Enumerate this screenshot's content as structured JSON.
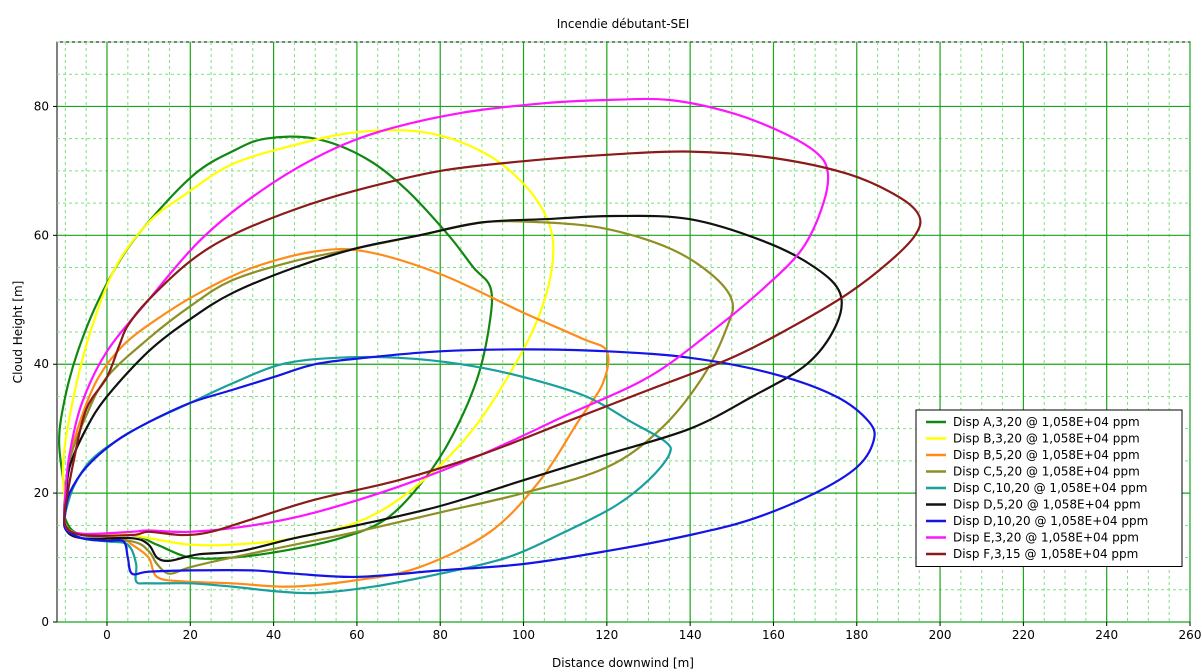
{
  "chart_data": {
    "type": "line",
    "title": "Incendie débutant-SEI",
    "xlabel": "Distance downwind [m]",
    "ylabel": "Cloud Height [m]",
    "xlim": [
      -12,
      260
    ],
    "ylim": [
      0,
      90
    ],
    "x_ticks": [
      0,
      20,
      40,
      60,
      80,
      100,
      120,
      140,
      160,
      180,
      200,
      220,
      240,
      260
    ],
    "y_ticks": [
      0,
      20,
      40,
      60,
      80
    ],
    "x_tick_labels": [
      "0",
      "20",
      "40",
      "60",
      "80",
      "100",
      "120",
      "140",
      "160",
      "180",
      "200",
      "220",
      "240",
      "260"
    ],
    "y_tick_labels": [
      "0",
      "20",
      "40",
      "60",
      "80"
    ],
    "grid": true,
    "minor_grid": true,
    "legend_position": "bottom-right",
    "series": [
      {
        "name": "Disp A,3,20 @ 1,058E+04 ppm",
        "color": "#118811",
        "points": [
          [
            -10,
            20
          ],
          [
            -11.5,
            28
          ],
          [
            -10,
            35
          ],
          [
            -7,
            42
          ],
          [
            -2,
            50
          ],
          [
            5,
            58
          ],
          [
            14,
            65
          ],
          [
            22,
            70
          ],
          [
            30,
            73
          ],
          [
            38,
            75
          ],
          [
            50,
            75
          ],
          [
            62,
            72
          ],
          [
            72,
            67
          ],
          [
            82,
            60
          ],
          [
            88,
            55
          ],
          [
            92,
            52
          ],
          [
            92,
            47
          ],
          [
            89,
            38
          ],
          [
            83,
            29
          ],
          [
            76,
            22
          ],
          [
            67,
            16
          ],
          [
            56,
            13
          ],
          [
            42,
            11
          ],
          [
            30,
            10
          ],
          [
            20,
            10
          ],
          [
            12,
            12
          ],
          [
            6,
            13.5
          ],
          [
            -6,
            13.5
          ],
          [
            -10,
            16
          ],
          [
            -10,
            20
          ]
        ]
      },
      {
        "name": "Disp B,3,20 @ 1,058E+04 ppm",
        "color": "#ffff00",
        "points": [
          [
            -10,
            18
          ],
          [
            -10.5,
            25
          ],
          [
            -8,
            35
          ],
          [
            -4,
            45
          ],
          [
            2,
            55
          ],
          [
            10,
            62
          ],
          [
            18,
            66
          ],
          [
            30,
            71
          ],
          [
            45,
            74
          ],
          [
            60,
            76
          ],
          [
            76,
            76
          ],
          [
            90,
            73
          ],
          [
            100,
            68
          ],
          [
            106,
            62
          ],
          [
            107,
            56
          ],
          [
            104,
            48
          ],
          [
            98,
            40
          ],
          [
            88,
            30
          ],
          [
            76,
            22
          ],
          [
            62,
            16
          ],
          [
            45,
            13
          ],
          [
            30,
            12
          ],
          [
            20,
            12
          ],
          [
            10,
            13
          ],
          [
            5,
            13.6
          ],
          [
            -6,
            13.6
          ],
          [
            -10,
            15
          ],
          [
            -10,
            18
          ]
        ]
      },
      {
        "name": "Disp B,5,20 @ 1,058E+04 ppm",
        "color": "#ff8c1a",
        "points": [
          [
            -10,
            18
          ],
          [
            -9,
            25
          ],
          [
            -6,
            32
          ],
          [
            -2,
            38
          ],
          [
            4,
            43
          ],
          [
            12,
            47
          ],
          [
            22,
            51
          ],
          [
            35,
            55
          ],
          [
            50,
            57.5
          ],
          [
            62,
            57.5
          ],
          [
            80,
            54
          ],
          [
            100,
            48
          ],
          [
            114,
            44
          ],
          [
            120,
            42
          ],
          [
            119,
            37
          ],
          [
            113,
            31
          ],
          [
            104,
            22
          ],
          [
            92,
            14
          ],
          [
            75,
            8.5
          ],
          [
            60,
            6.5
          ],
          [
            44,
            5.5
          ],
          [
            30,
            6
          ],
          [
            18,
            6.3
          ],
          [
            12,
            7
          ],
          [
            10,
            10
          ],
          [
            6,
            12
          ],
          [
            3,
            13
          ],
          [
            -6,
            13
          ],
          [
            -10,
            15
          ],
          [
            -10,
            18
          ]
        ]
      },
      {
        "name": "Disp C,5,20 @ 1,058E+04 ppm",
        "color": "#8f8f26",
        "points": [
          [
            -10,
            18
          ],
          [
            -9,
            25
          ],
          [
            -5,
            32
          ],
          [
            0,
            38
          ],
          [
            10,
            44
          ],
          [
            20,
            49
          ],
          [
            30,
            53
          ],
          [
            45,
            56
          ],
          [
            60,
            58
          ],
          [
            75,
            60
          ],
          [
            90,
            62
          ],
          [
            105,
            62
          ],
          [
            120,
            61
          ],
          [
            135,
            58
          ],
          [
            145,
            54
          ],
          [
            150,
            50
          ],
          [
            149,
            46
          ],
          [
            143,
            38
          ],
          [
            133,
            30
          ],
          [
            120,
            24
          ],
          [
            100,
            20
          ],
          [
            80,
            17
          ],
          [
            60,
            14
          ],
          [
            45,
            12
          ],
          [
            30,
            10
          ],
          [
            20,
            8.5
          ],
          [
            15,
            7.5
          ],
          [
            12,
            9
          ],
          [
            10,
            11
          ],
          [
            6,
            12.5
          ],
          [
            -6,
            13
          ],
          [
            -10,
            15
          ],
          [
            -10,
            18
          ]
        ]
      },
      {
        "name": "Disp C,10,20 @ 1,058E+04 ppm",
        "color": "#1a9e9e",
        "points": [
          [
            -10,
            17
          ],
          [
            -8,
            21
          ],
          [
            -4,
            25
          ],
          [
            2,
            28
          ],
          [
            10,
            31
          ],
          [
            20,
            34
          ],
          [
            30,
            37
          ],
          [
            42,
            40
          ],
          [
            55,
            41
          ],
          [
            70,
            41
          ],
          [
            85,
            40
          ],
          [
            100,
            38
          ],
          [
            115,
            35
          ],
          [
            126,
            31
          ],
          [
            134,
            28
          ],
          [
            135,
            26
          ],
          [
            130,
            22
          ],
          [
            122,
            18
          ],
          [
            110,
            14
          ],
          [
            96,
            10
          ],
          [
            80,
            7.5
          ],
          [
            64,
            5.5
          ],
          [
            50,
            4.5
          ],
          [
            40,
            4.8
          ],
          [
            30,
            5.5
          ],
          [
            20,
            6
          ],
          [
            10,
            6
          ],
          [
            7,
            6.3
          ],
          [
            7,
            9
          ],
          [
            5,
            12
          ],
          [
            0,
            12.5
          ],
          [
            -6,
            13
          ],
          [
            -10,
            14.5
          ],
          [
            -10,
            17
          ]
        ]
      },
      {
        "name": "Disp D,5,20 @ 1,058E+04 ppm",
        "color": "#111111",
        "points": [
          [
            -10,
            18
          ],
          [
            -9,
            24
          ],
          [
            -5,
            30
          ],
          [
            0,
            35
          ],
          [
            10,
            42
          ],
          [
            20,
            47
          ],
          [
            30,
            51
          ],
          [
            45,
            55
          ],
          [
            60,
            58
          ],
          [
            75,
            60
          ],
          [
            90,
            62
          ],
          [
            105,
            62.5
          ],
          [
            122,
            63
          ],
          [
            140,
            62.5
          ],
          [
            158,
            59
          ],
          [
            170,
            55
          ],
          [
            176,
            51
          ],
          [
            175,
            46
          ],
          [
            168,
            40
          ],
          [
            155,
            35
          ],
          [
            140,
            30
          ],
          [
            120,
            26
          ],
          [
            100,
            22
          ],
          [
            80,
            18
          ],
          [
            60,
            15
          ],
          [
            45,
            13
          ],
          [
            32,
            11
          ],
          [
            22,
            10.5
          ],
          [
            15,
            9.5
          ],
          [
            12,
            10
          ],
          [
            10,
            12
          ],
          [
            6,
            13
          ],
          [
            -6,
            13
          ],
          [
            -10,
            14.5
          ],
          [
            -10,
            18
          ]
        ]
      },
      {
        "name": "Disp D,10,20 @ 1,058E+04 ppm",
        "color": "#1414e6",
        "points": [
          [
            -10,
            17
          ],
          [
            -9,
            20
          ],
          [
            -5,
            24
          ],
          [
            2,
            28
          ],
          [
            10,
            31
          ],
          [
            20,
            34
          ],
          [
            30,
            36
          ],
          [
            40,
            38
          ],
          [
            50,
            40
          ],
          [
            62,
            41
          ],
          [
            80,
            42
          ],
          [
            100,
            42.3
          ],
          [
            120,
            42
          ],
          [
            140,
            41
          ],
          [
            160,
            38.5
          ],
          [
            175,
            35
          ],
          [
            183,
            31
          ],
          [
            184,
            28
          ],
          [
            180,
            24
          ],
          [
            170,
            20
          ],
          [
            155,
            16
          ],
          [
            140,
            13.5
          ],
          [
            120,
            11
          ],
          [
            100,
            9
          ],
          [
            80,
            8
          ],
          [
            60,
            7
          ],
          [
            45,
            7.5
          ],
          [
            35,
            8
          ],
          [
            20,
            8
          ],
          [
            10,
            7.8
          ],
          [
            6,
            7.5
          ],
          [
            5,
            10
          ],
          [
            4,
            12.5
          ],
          [
            0,
            12.6
          ],
          [
            -6,
            13
          ],
          [
            -10,
            14.5
          ],
          [
            -10,
            17
          ]
        ]
      },
      {
        "name": "Disp E,3,20 @ 1,058E+04 ppm",
        "color": "#ff14ff",
        "points": [
          [
            -10,
            20
          ],
          [
            -9,
            26
          ],
          [
            -6,
            34
          ],
          [
            0,
            42
          ],
          [
            10,
            50
          ],
          [
            22,
            59
          ],
          [
            35,
            66
          ],
          [
            50,
            72
          ],
          [
            65,
            76
          ],
          [
            85,
            79
          ],
          [
            105,
            80.5
          ],
          [
            120,
            81
          ],
          [
            135,
            81
          ],
          [
            150,
            79
          ],
          [
            162,
            76
          ],
          [
            170,
            73
          ],
          [
            173,
            70
          ],
          [
            172,
            65
          ],
          [
            167,
            58
          ],
          [
            158,
            52
          ],
          [
            145,
            45
          ],
          [
            130,
            38
          ],
          [
            110,
            32
          ],
          [
            90,
            26
          ],
          [
            70,
            21
          ],
          [
            50,
            17
          ],
          [
            35,
            15
          ],
          [
            20,
            14
          ],
          [
            10,
            14.2
          ],
          [
            6,
            14
          ],
          [
            -6,
            13.7
          ],
          [
            -10,
            15
          ],
          [
            -10,
            20
          ]
        ]
      },
      {
        "name": "Disp F,3,15 @ 1,058E+04 ppm",
        "color": "#8b1a1a",
        "points": [
          [
            -10,
            18
          ],
          [
            -8,
            25
          ],
          [
            -5,
            33
          ],
          [
            0,
            38
          ],
          [
            3,
            43
          ],
          [
            5,
            46
          ],
          [
            10,
            50
          ],
          [
            20,
            56
          ],
          [
            30,
            60
          ],
          [
            45,
            64
          ],
          [
            60,
            67
          ],
          [
            80,
            70
          ],
          [
            100,
            71.5
          ],
          [
            120,
            72.5
          ],
          [
            140,
            73
          ],
          [
            160,
            72
          ],
          [
            178,
            69.5
          ],
          [
            190,
            66
          ],
          [
            195,
            63
          ],
          [
            194,
            60
          ],
          [
            188,
            56
          ],
          [
            178,
            51
          ],
          [
            165,
            46
          ],
          [
            150,
            41
          ],
          [
            130,
            36
          ],
          [
            110,
            31
          ],
          [
            90,
            26
          ],
          [
            70,
            22
          ],
          [
            50,
            19
          ],
          [
            35,
            16
          ],
          [
            25,
            14
          ],
          [
            18,
            13.5
          ],
          [
            10,
            14
          ],
          [
            6,
            13.5
          ],
          [
            -6,
            13.5
          ],
          [
            -10,
            15
          ],
          [
            -10,
            18
          ]
        ]
      }
    ]
  }
}
